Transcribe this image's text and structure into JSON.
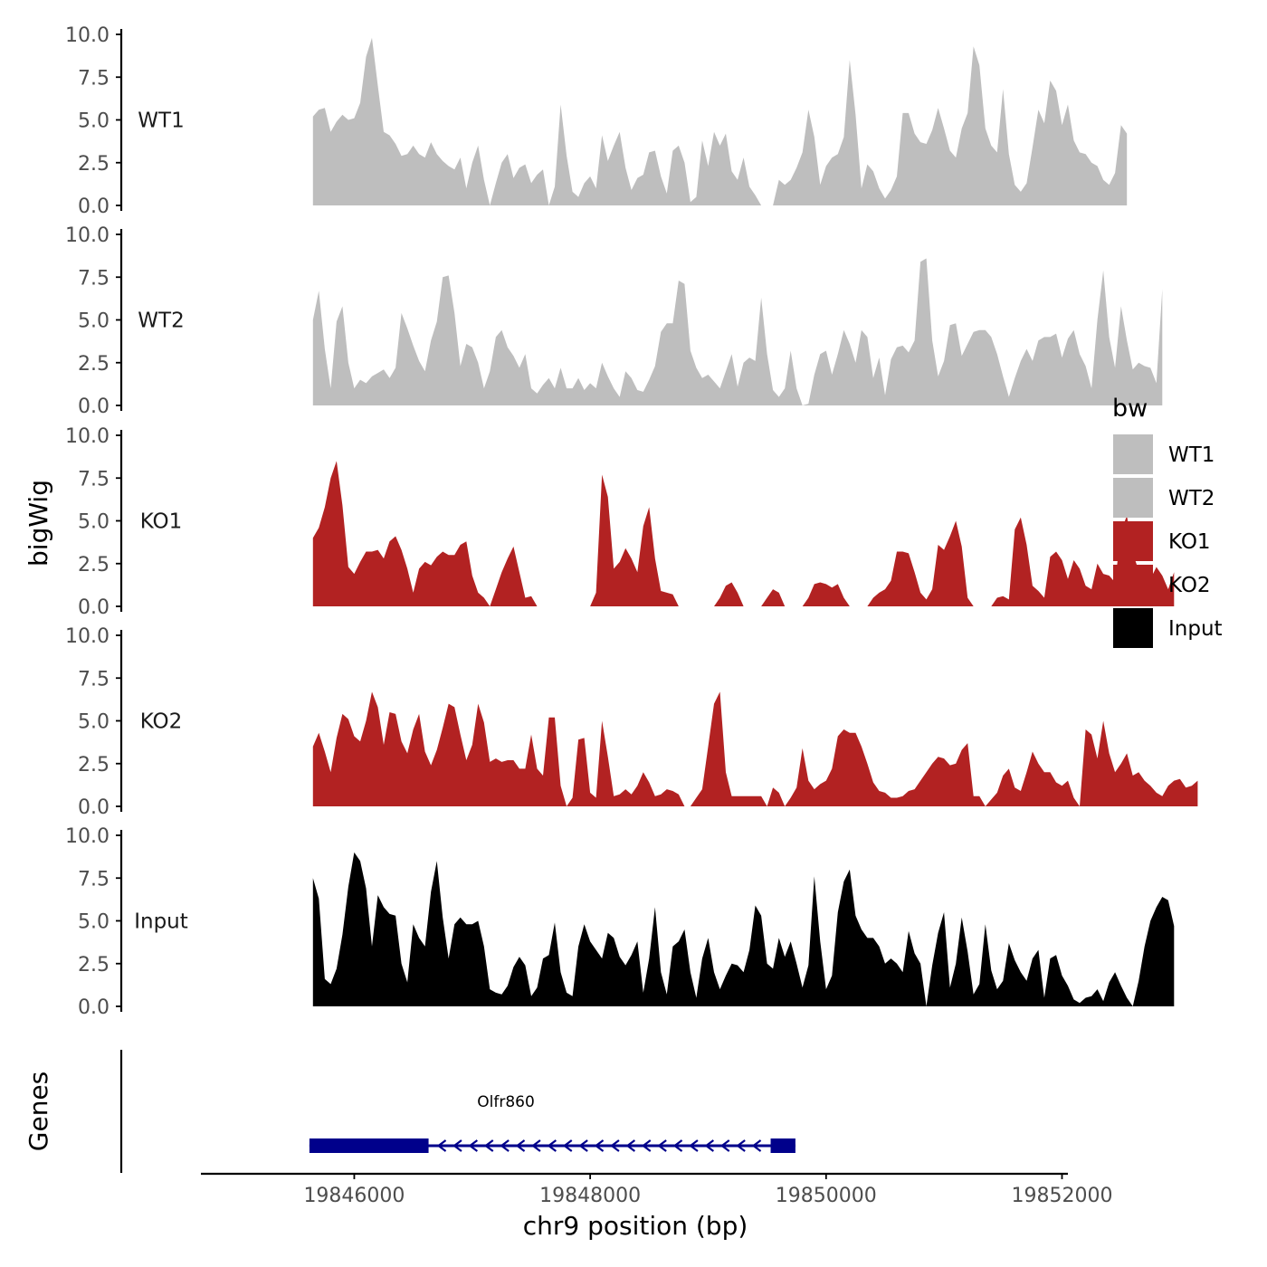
{
  "chart_data": {
    "type": "area",
    "ylabel": "bigWig",
    "xlabel": "chr9 position (bp)",
    "ylim": [
      0,
      10
    ],
    "xlim": [
      19844700,
      19852050
    ],
    "y_ticks": [
      "0.0",
      "2.5",
      "5.0",
      "7.5",
      "10.0"
    ],
    "x_ticks": [
      {
        "value": 19846000,
        "label": "19846000"
      },
      {
        "value": 19848000,
        "label": "19848000"
      },
      {
        "value": 19850000,
        "label": "19850000"
      },
      {
        "value": 19852000,
        "label": "19852000"
      }
    ],
    "x_start": 19845650,
    "x_step": 50,
    "series": [
      {
        "name": "WT1",
        "color": "#bebebe",
        "values": [
          5.2,
          5.6,
          5.7,
          4.3,
          4.9,
          5.3,
          5.0,
          5.1,
          6.0,
          8.7,
          9.8,
          7.0,
          4.3,
          4.1,
          3.6,
          2.9,
          3.0,
          3.5,
          3.0,
          2.8,
          3.7,
          3.0,
          2.6,
          2.3,
          2.1,
          2.8,
          1.0,
          2.5,
          3.5,
          1.5,
          0.0,
          1.3,
          2.5,
          3.0,
          1.6,
          2.2,
          2.4,
          1.3,
          1.8,
          2.1,
          0.0,
          1.1,
          5.9,
          2.9,
          0.8,
          0.5,
          1.3,
          1.7,
          1.0,
          4.1,
          2.6,
          3.5,
          4.3,
          2.2,
          0.9,
          1.6,
          1.8,
          3.1,
          3.2,
          1.7,
          0.7,
          3.2,
          3.5,
          2.5,
          0.2,
          0.5,
          3.8,
          2.3,
          4.3,
          3.5,
          4.2,
          2.0,
          1.5,
          2.8,
          1.1,
          0.6,
          0.0,
          0.0,
          0.0,
          1.5,
          1.2,
          1.5,
          2.2,
          3.1,
          5.6,
          4.0,
          1.2,
          2.3,
          2.8,
          3.0,
          4.0,
          8.5,
          5.3,
          1.0,
          2.4,
          2.0,
          1.0,
          0.4,
          0.9,
          1.7,
          5.4,
          5.4,
          4.2,
          3.7,
          3.6,
          4.4,
          5.7,
          4.5,
          3.2,
          2.8,
          4.5,
          5.4,
          9.3,
          8.2,
          4.5,
          3.5,
          3.1,
          6.8,
          3.0,
          1.2,
          0.8,
          1.3,
          3.4,
          5.6,
          4.8,
          7.3,
          6.7,
          4.7,
          5.9,
          3.8,
          3.1,
          3.0,
          2.5,
          2.3,
          1.5,
          1.2,
          1.9,
          4.7,
          4.2
        ]
      },
      {
        "name": "WT2",
        "color": "#bebebe",
        "values": [
          5.0,
          6.7,
          3.3,
          1.0,
          4.9,
          5.8,
          2.5,
          1.0,
          1.5,
          1.3,
          1.7,
          1.9,
          2.1,
          1.6,
          2.2,
          5.4,
          4.5,
          3.5,
          2.6,
          2.0,
          3.8,
          4.9,
          7.5,
          7.6,
          5.4,
          2.3,
          3.6,
          3.4,
          2.5,
          1.0,
          2.0,
          4.0,
          4.4,
          3.4,
          2.9,
          2.2,
          3.0,
          1.0,
          0.7,
          1.2,
          1.6,
          1.0,
          2.2,
          1.0,
          1.0,
          1.6,
          0.9,
          1.3,
          1.0,
          2.5,
          1.7,
          1.0,
          0.5,
          2.0,
          1.6,
          0.9,
          0.8,
          1.5,
          2.3,
          4.3,
          4.8,
          4.8,
          7.3,
          7.1,
          3.2,
          2.2,
          1.6,
          1.8,
          1.4,
          1.0,
          2.0,
          3.0,
          1.1,
          2.5,
          2.8,
          2.6,
          6.3,
          3.0,
          0.9,
          0.5,
          1.0,
          3.2,
          1.0,
          0.0,
          0.1,
          1.8,
          3.0,
          3.2,
          1.8,
          3.0,
          4.4,
          3.6,
          2.5,
          4.4,
          4.0,
          1.6,
          2.8,
          0.6,
          2.7,
          3.4,
          3.5,
          3.1,
          3.8,
          8.4,
          8.6,
          3.8,
          1.7,
          2.6,
          4.7,
          4.8,
          2.9,
          3.6,
          4.3,
          4.4,
          4.4,
          4.0,
          3.0,
          1.7,
          0.5,
          1.6,
          2.6,
          3.3,
          2.6,
          3.8,
          4.0,
          4.0,
          4.2,
          2.8,
          3.9,
          4.4,
          3.0,
          2.3,
          1.0,
          5.0,
          7.9,
          4.0,
          2.2,
          5.8,
          3.8,
          2.1,
          2.5,
          2.3,
          2.2,
          1.3,
          6.8
        ]
      },
      {
        "name": "KO1",
        "color": "#b22222",
        "values": [
          4.0,
          4.6,
          5.8,
          7.5,
          8.5,
          5.9,
          2.3,
          1.9,
          2.6,
          3.2,
          3.2,
          3.3,
          2.8,
          3.8,
          4.1,
          3.3,
          2.2,
          0.8,
          2.2,
          2.6,
          2.4,
          2.9,
          3.2,
          3.0,
          3.0,
          3.6,
          3.8,
          1.8,
          0.8,
          0.5,
          0.0,
          1.0,
          2.0,
          2.8,
          3.5,
          2.0,
          0.5,
          0.6,
          0.0,
          0.0,
          0.0,
          0.0,
          0.0,
          0.0,
          0.0,
          0.0,
          0.0,
          0.0,
          0.8,
          7.7,
          6.4,
          2.2,
          2.6,
          3.4,
          2.8,
          2.0,
          4.7,
          5.8,
          2.8,
          0.9,
          0.8,
          0.7,
          0.0,
          0.0,
          0.0,
          0.0,
          0.0,
          0.0,
          0.0,
          0.5,
          1.2,
          1.4,
          0.8,
          0.0,
          0.0,
          0.0,
          0.0,
          0.5,
          1.0,
          0.8,
          0.0,
          0.0,
          0.0,
          0.0,
          0.5,
          1.3,
          1.4,
          1.3,
          1.1,
          1.3,
          0.5,
          0.0,
          0.0,
          0.0,
          0.0,
          0.5,
          0.8,
          1.0,
          1.5,
          3.2,
          3.2,
          3.1,
          2.0,
          0.8,
          0.4,
          1.0,
          3.6,
          3.3,
          4.1,
          5.0,
          3.5,
          0.5,
          0.0,
          0.0,
          0.0,
          0.0,
          0.5,
          0.6,
          0.4,
          4.5,
          5.2,
          3.6,
          1.2,
          0.9,
          0.5,
          2.9,
          3.2,
          2.7,
          1.6,
          2.7,
          2.2,
          1.2,
          1.0,
          2.5,
          1.9,
          1.8,
          1.4,
          4.4,
          5.3,
          3.1,
          2.1,
          1.8,
          1.6,
          2.3,
          1.8,
          1.0,
          2.0
        ]
      },
      {
        "name": "KO2",
        "color": "#b22222",
        "values": [
          3.5,
          4.3,
          3.2,
          2.0,
          4.0,
          5.4,
          5.1,
          4.1,
          3.8,
          5.0,
          6.7,
          5.8,
          3.6,
          5.5,
          5.4,
          3.8,
          3.1,
          4.5,
          5.4,
          3.2,
          2.4,
          3.3,
          4.6,
          6.0,
          5.8,
          4.2,
          2.7,
          3.6,
          6.0,
          4.9,
          2.6,
          2.8,
          2.6,
          2.7,
          2.7,
          2.2,
          2.2,
          4.2,
          2.2,
          1.8,
          5.2,
          5.2,
          1.2,
          0.0,
          0.5,
          3.9,
          4.0,
          0.8,
          0.5,
          5.0,
          2.9,
          0.6,
          0.7,
          1.0,
          0.7,
          1.2,
          2.0,
          1.4,
          0.6,
          0.7,
          1.0,
          0.9,
          0.7,
          0.0,
          0.0,
          0.5,
          1.0,
          3.5,
          6.0,
          6.7,
          2.0,
          0.6,
          0.6,
          0.6,
          0.6,
          0.6,
          0.6,
          0.0,
          1.1,
          0.8,
          0.0,
          0.5,
          1.1,
          3.4,
          1.5,
          1.0,
          1.3,
          1.5,
          2.2,
          4.1,
          4.5,
          4.3,
          4.3,
          3.5,
          2.5,
          1.4,
          0.9,
          0.8,
          0.5,
          0.5,
          0.6,
          0.9,
          1.0,
          1.5,
          2.0,
          2.5,
          2.9,
          2.8,
          2.4,
          2.5,
          3.3,
          3.7,
          0.6,
          0.6,
          0.0,
          0.4,
          0.8,
          1.8,
          2.2,
          1.1,
          0.9,
          2.0,
          3.2,
          2.5,
          2.0,
          2.0,
          1.4,
          1.2,
          1.5,
          0.5,
          0.0,
          4.5,
          4.2,
          2.8,
          5.0,
          3.1,
          2.0,
          2.5,
          3.1,
          1.8,
          2.0,
          1.5,
          1.2,
          0.8,
          0.6,
          1.2,
          1.5,
          1.6,
          1.1,
          1.2,
          1.5
        ]
      },
      {
        "name": "Input",
        "color": "#000000",
        "values": [
          7.5,
          6.3,
          1.6,
          1.3,
          2.2,
          4.2,
          7.0,
          9.0,
          8.5,
          6.9,
          3.5,
          6.5,
          5.8,
          5.4,
          5.3,
          2.5,
          1.4,
          4.8,
          4.0,
          3.5,
          6.7,
          8.5,
          5.2,
          2.8,
          4.8,
          5.2,
          4.8,
          4.8,
          5.0,
          3.5,
          1.0,
          0.8,
          0.7,
          1.2,
          2.3,
          2.9,
          2.4,
          0.6,
          1.1,
          2.8,
          3.0,
          4.9,
          2.0,
          0.8,
          0.6,
          3.5,
          4.8,
          3.8,
          3.3,
          2.8,
          4.3,
          4.0,
          2.9,
          2.4,
          3.0,
          3.8,
          0.8,
          2.8,
          5.8,
          2.0,
          0.7,
          3.5,
          3.8,
          4.5,
          2.0,
          0.5,
          2.8,
          4.0,
          2.0,
          1.0,
          1.8,
          2.5,
          2.4,
          2.0,
          3.3,
          5.9,
          5.3,
          2.5,
          2.2,
          4.0,
          2.9,
          3.8,
          2.5,
          1.1,
          2.4,
          7.6,
          3.8,
          1.0,
          1.8,
          5.5,
          7.3,
          8.0,
          5.3,
          4.5,
          4.0,
          4.0,
          3.5,
          2.5,
          2.8,
          2.5,
          2.0,
          4.4,
          3.1,
          2.5,
          0.0,
          2.4,
          4.3,
          5.5,
          1.1,
          2.5,
          5.2,
          3.2,
          0.7,
          1.3,
          4.8,
          2.1,
          1.0,
          1.5,
          3.7,
          2.7,
          2.0,
          1.5,
          2.8,
          3.3,
          0.5,
          2.8,
          3.0,
          1.8,
          1.2,
          0.4,
          0.2,
          0.5,
          0.6,
          1.0,
          0.3,
          1.4,
          2.0,
          1.2,
          0.5,
          0.0,
          1.5,
          3.5,
          5.0,
          5.8,
          6.4,
          6.2,
          4.7
        ]
      }
    ],
    "genes_panel": {
      "ylabel": "Genes",
      "genes": [
        {
          "name": "Olfr860",
          "color": "#00008b",
          "start": 19845620,
          "end": 19849740,
          "strand": "-",
          "exons": [
            [
              19845620,
              19846630
            ],
            [
              19849530,
              19849740
            ]
          ]
        }
      ]
    },
    "legend": {
      "title": "bw",
      "position": "right",
      "entries": [
        {
          "label": "WT1",
          "color": "#bebebe"
        },
        {
          "label": "WT2",
          "color": "#bebebe"
        },
        {
          "label": "KO1",
          "color": "#b22222"
        },
        {
          "label": "KO2",
          "color": "#b22222"
        },
        {
          "label": "Input",
          "color": "#000000"
        }
      ]
    }
  }
}
